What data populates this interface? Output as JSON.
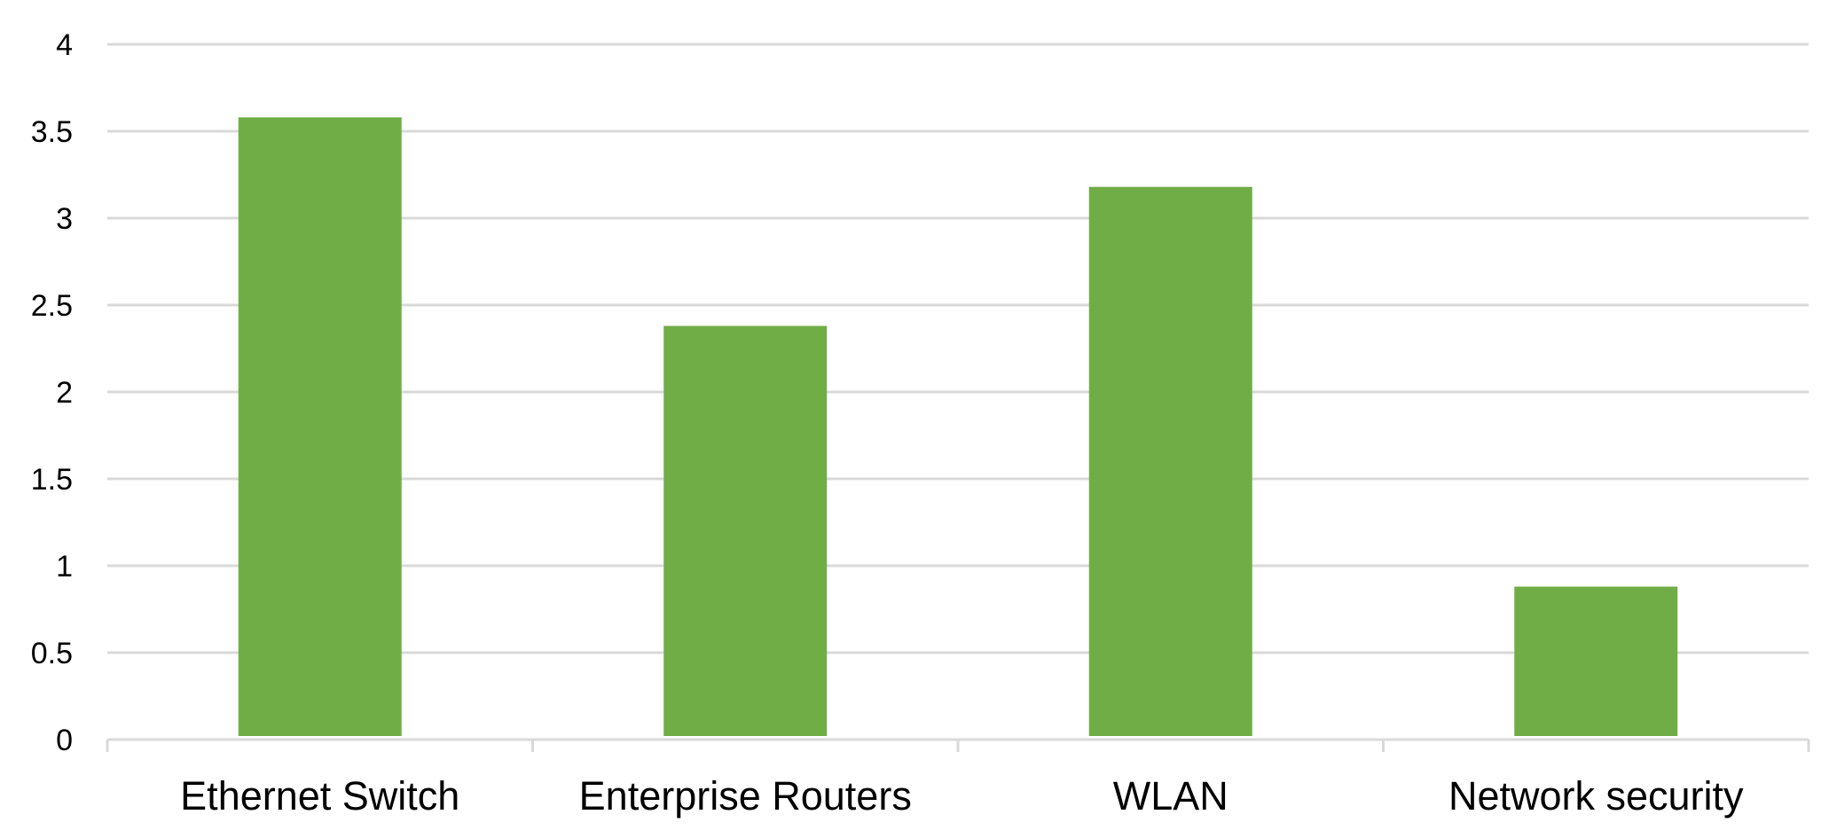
{
  "chart_data": {
    "type": "bar",
    "categories": [
      "Ethernet Switch",
      "Enterprise Routers",
      "WLAN",
      "Network security"
    ],
    "series": [
      {
        "values": [
          3.58,
          2.38,
          3.18,
          0.88
        ]
      }
    ],
    "title": "",
    "xlabel": "",
    "ylabel": "",
    "ylim": [
      0,
      4
    ],
    "yticks": [
      0,
      0.5,
      1,
      1.5,
      2,
      2.5,
      3,
      3.5,
      4
    ],
    "ytick_labels": [
      "0",
      "0.5",
      "1",
      "1.5",
      "2",
      "2.5",
      "3",
      "3.5",
      "4"
    ],
    "grid": true,
    "legend": "none",
    "colors": {
      "bar": "#70ad47",
      "grid": "#d9d9d9",
      "text": "#000000"
    }
  }
}
